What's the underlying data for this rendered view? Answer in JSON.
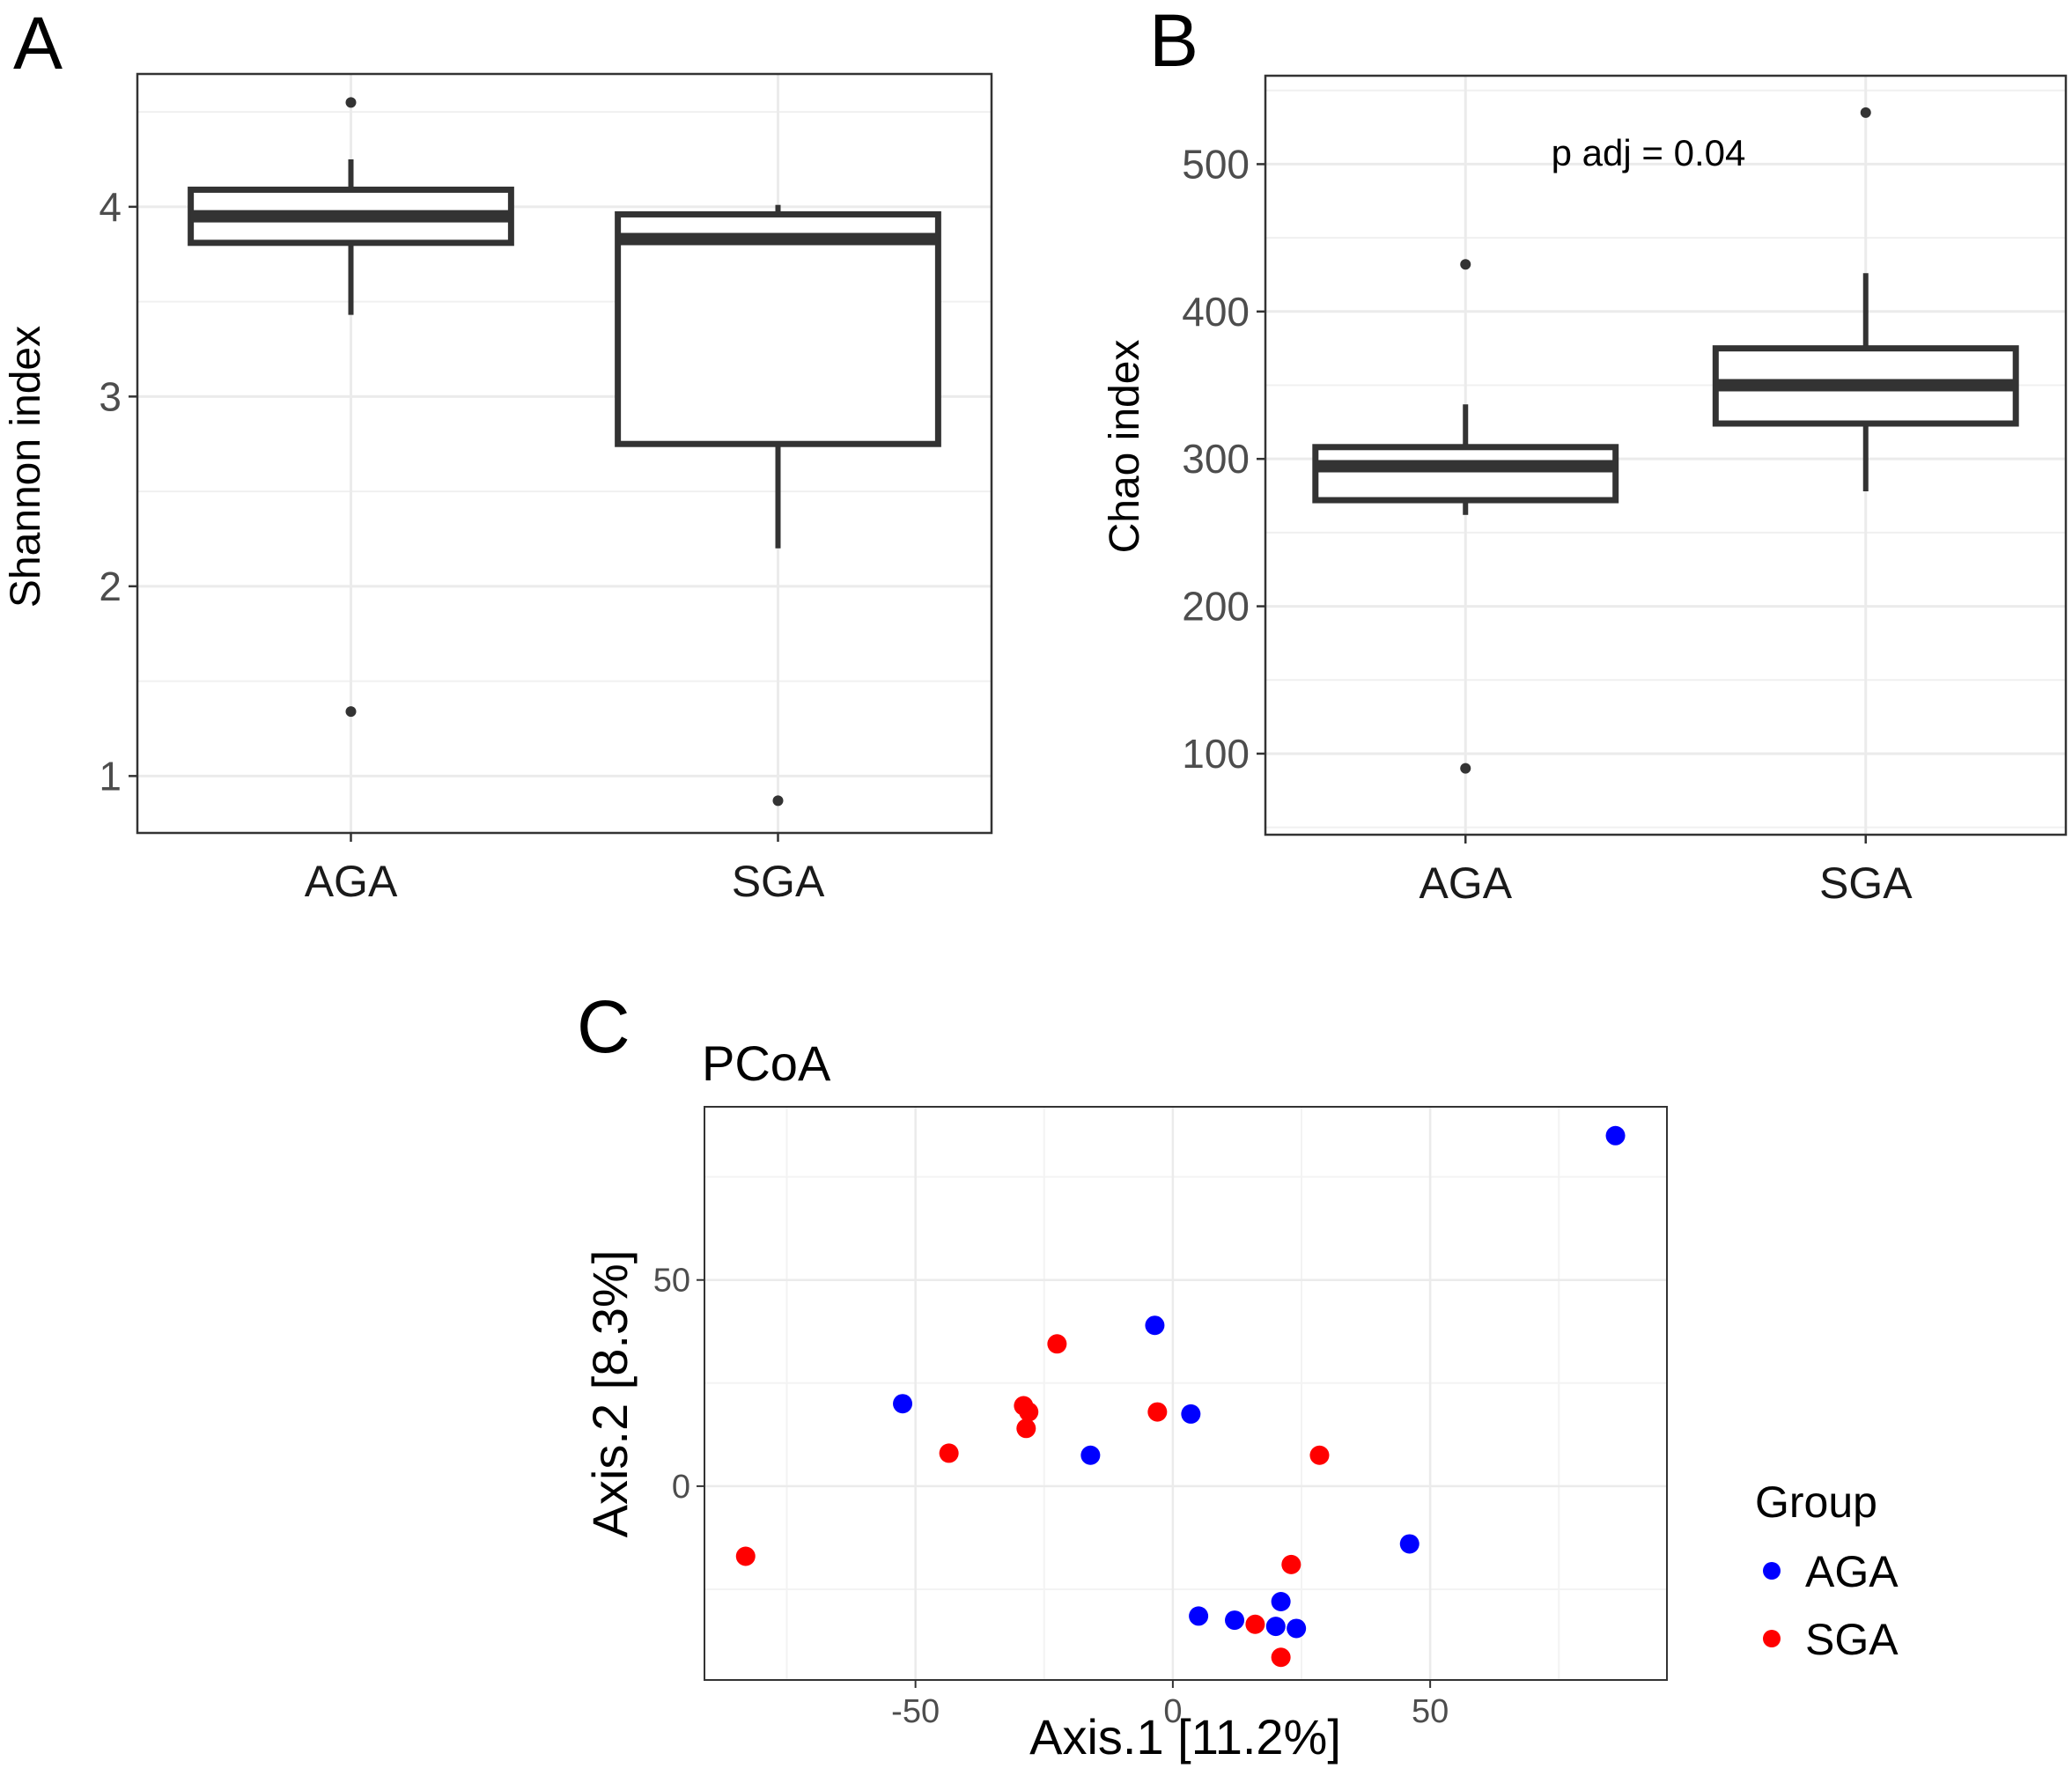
{
  "chart_data": [
    {
      "panel": "A",
      "type": "box",
      "xlabel": "",
      "ylabel": "Shannon index",
      "ylim": [
        0.7,
        4.7
      ],
      "yticks": [
        1,
        2,
        3,
        4
      ],
      "categories": [
        "AGA",
        "SGA"
      ],
      "boxes": [
        {
          "q1": 3.81,
          "median": 3.95,
          "q3": 4.09,
          "whisker_low": 3.43,
          "whisker_high": 4.25,
          "outliers": [
            4.55,
            1.34
          ]
        },
        {
          "q1": 2.75,
          "median": 3.83,
          "q3": 3.96,
          "whisker_low": 2.2,
          "whisker_high": 4.01,
          "outliers": [
            0.87
          ]
        }
      ],
      "annotation": ""
    },
    {
      "panel": "B",
      "type": "box",
      "xlabel": "",
      "ylabel": "Chao index",
      "ylim": [
        45,
        560
      ],
      "yticks": [
        100,
        200,
        300,
        400,
        500
      ],
      "categories": [
        "AGA",
        "SGA"
      ],
      "boxes": [
        {
          "q1": 272,
          "median": 295,
          "q3": 308,
          "whisker_low": 262,
          "whisker_high": 337,
          "outliers": [
            432,
            90
          ]
        },
        {
          "q1": 324,
          "median": 350,
          "q3": 375,
          "whisker_low": 278,
          "whisker_high": 426,
          "outliers": [
            535
          ]
        }
      ],
      "annotation": "p adj = 0.04"
    },
    {
      "panel": "C",
      "type": "scatter",
      "title": "PCoA",
      "xlabel": "Axis.1   [11.2%]",
      "ylabel": "Axis.2   [8.3%]",
      "xlim": [
        -91,
        96
      ],
      "ylim": [
        -47,
        92
      ],
      "xticks": [
        -50,
        0,
        50
      ],
      "yticks": [
        0,
        50
      ],
      "legend_title": "Group",
      "series": [
        {
          "name": "AGA",
          "color": "#0000ff",
          "points": [
            [
              86,
              85
            ],
            [
              -3.5,
              39
            ],
            [
              -52.5,
              20
            ],
            [
              3.5,
              17.5
            ],
            [
              -16,
              7.5
            ],
            [
              46,
              -14
            ],
            [
              21,
              -28
            ],
            [
              5,
              -31.5
            ],
            [
              12,
              -32.5
            ],
            [
              20,
              -34
            ],
            [
              24,
              -34.5
            ]
          ]
        },
        {
          "name": "SGA",
          "color": "#ff0000",
          "points": [
            [
              -22.5,
              34.5
            ],
            [
              -29,
              19.5
            ],
            [
              -28,
              18
            ],
            [
              -28.5,
              14
            ],
            [
              -3,
              18
            ],
            [
              -43.5,
              8
            ],
            [
              28.5,
              7.5
            ],
            [
              -83,
              -17
            ],
            [
              23,
              -19
            ],
            [
              16,
              -33.5
            ],
            [
              21,
              -41.5
            ]
          ]
        }
      ]
    }
  ],
  "labels": {
    "panel_a": "A",
    "panel_b": "B",
    "panel_c": "C"
  }
}
